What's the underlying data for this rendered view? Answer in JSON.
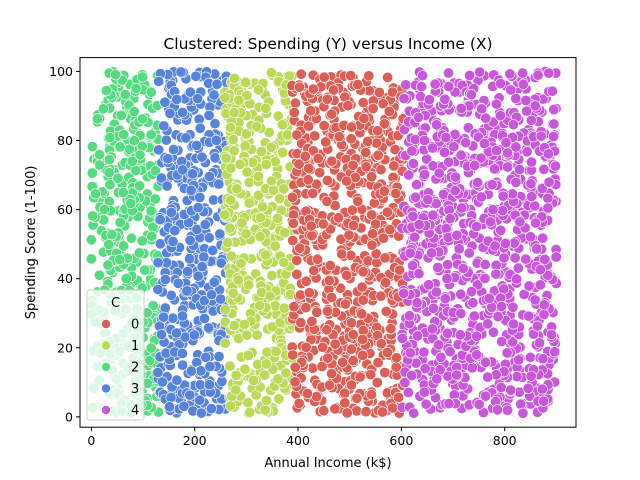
{
  "chart_data": {
    "type": "scatter",
    "title": "Clustered: Spending (Y) versus Income (X)",
    "xlabel": "Annual Income (k$)",
    "ylabel": "Spending Score (1-100)",
    "xlim": [
      -22,
      938
    ],
    "ylim": [
      -3,
      104
    ],
    "xticks": [
      0,
      200,
      400,
      600,
      800
    ],
    "yticks": [
      0,
      20,
      40,
      60,
      80,
      100
    ],
    "grid": false,
    "legend": {
      "title": "C",
      "placement": "lower-left",
      "entries": [
        "0",
        "1",
        "2",
        "3",
        "4"
      ]
    },
    "series": [
      {
        "name": "0",
        "color": "#db5f57",
        "x_range": [
          388,
          604
        ],
        "y_range": [
          1,
          100
        ]
      },
      {
        "name": "1",
        "color": "#b9d957",
        "x_range": [
          258,
          392
        ],
        "y_range": [
          1,
          100
        ]
      },
      {
        "name": "2",
        "color": "#57db80",
        "x_range": [
          0,
          130
        ],
        "y_range": [
          1,
          100
        ]
      },
      {
        "name": "3",
        "color": "#5784db",
        "x_range": [
          128,
          262
        ],
        "y_range": [
          1,
          100
        ]
      },
      {
        "name": "4",
        "color": "#c957db",
        "x_range": [
          600,
          900
        ],
        "y_range": [
          1,
          100
        ]
      }
    ]
  }
}
